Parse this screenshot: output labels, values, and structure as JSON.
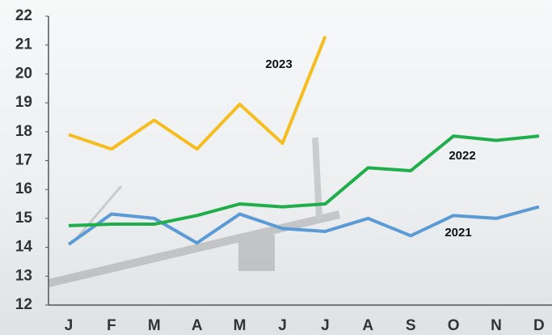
{
  "chart_data": {
    "type": "line",
    "categories": [
      "J",
      "F",
      "M",
      "A",
      "M",
      "J",
      "J",
      "A",
      "S",
      "O",
      "N",
      "D"
    ],
    "series": [
      {
        "name": "2021",
        "color": "#5b9bd5",
        "values": [
          14.1,
          15.15,
          15.0,
          14.15,
          15.15,
          14.65,
          14.55,
          15.0,
          14.4,
          15.1,
          15.0,
          15.4
        ]
      },
      {
        "name": "2022",
        "color": "#1fae4b",
        "values": [
          14.75,
          14.8,
          14.8,
          15.1,
          15.5,
          15.4,
          15.5,
          16.75,
          16.65,
          17.85,
          17.7,
          17.85
        ]
      },
      {
        "name": "2023",
        "color": "#f5bd1f",
        "values": [
          17.9,
          17.4,
          18.4,
          17.4,
          18.95,
          17.6,
          21.3,
          null,
          null,
          null,
          null,
          null
        ]
      }
    ],
    "ylim": [
      12,
      22
    ],
    "yticks": [
      12,
      13,
      14,
      15,
      16,
      17,
      18,
      19,
      20,
      21,
      22
    ]
  }
}
